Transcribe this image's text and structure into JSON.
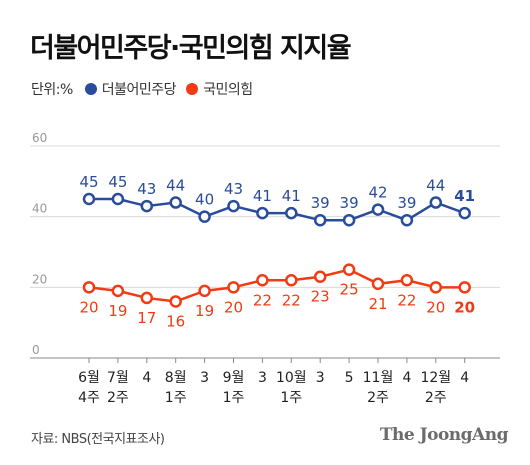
{
  "title": "더불어민주당·국민의힘 지지율",
  "legend": {
    "unit": "단위:%"
  },
  "source": "자료: NBS(전국지표조사)",
  "brand": "The JoongAng",
  "colors": {
    "democratic": "#2a4d9b",
    "ppp": "#f03c14",
    "grid": "#d9d9d9"
  },
  "chart_data": {
    "type": "line",
    "categories": [
      "6월\n4주",
      "7월\n2주",
      "4",
      "8월\n1주",
      "3",
      "9월\n1주",
      "3",
      "10월\n1주",
      "3",
      "5",
      "11월\n2주",
      "4",
      "12월\n2주",
      "4"
    ],
    "ylim": [
      0,
      60
    ],
    "yticks": [
      0,
      20,
      40,
      60
    ],
    "grid": true,
    "legend_position": "top-left",
    "series": [
      {
        "name": "더불어민주당",
        "color": "#2a4d9b",
        "values": [
          45,
          45,
          43,
          44,
          40,
          43,
          41,
          41,
          39,
          39,
          42,
          39,
          44,
          41
        ]
      },
      {
        "name": "국민의힘",
        "color": "#f03c14",
        "values": [
          20,
          19,
          17,
          16,
          19,
          20,
          22,
          22,
          23,
          25,
          21,
          22,
          20,
          20
        ]
      }
    ]
  }
}
